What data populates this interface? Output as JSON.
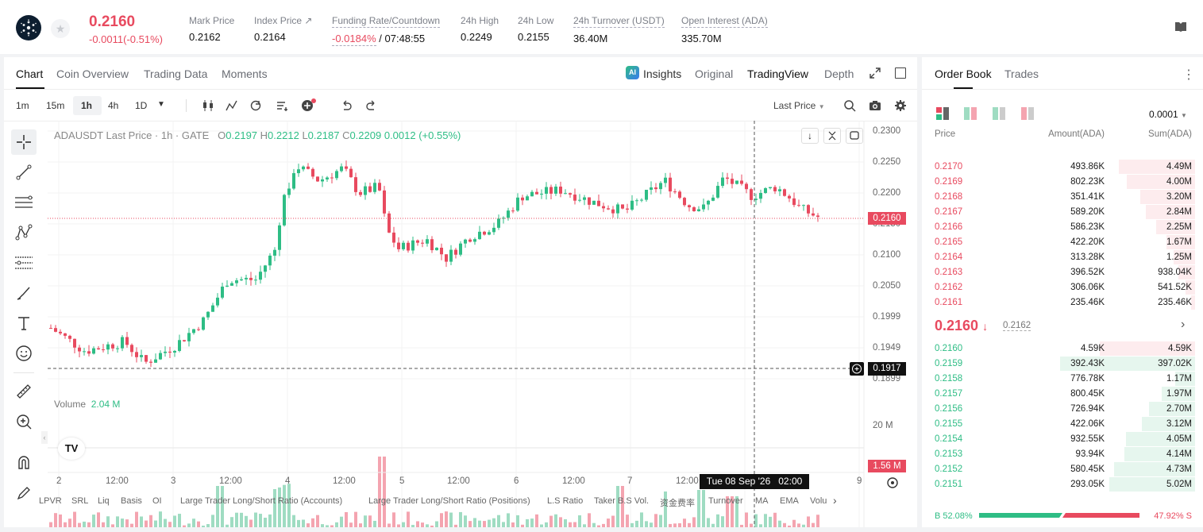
{
  "header": {
    "last_price": "0.2160",
    "change": "-0.0011(-0.51%)",
    "stats": [
      {
        "label": "Mark Price",
        "value": "0.2162"
      },
      {
        "label": "Index Price ↗",
        "value": "0.2164"
      },
      {
        "label": "Funding Rate/Countdown",
        "value_a": "-0.0184%",
        "value_b": " / 07:48:55"
      },
      {
        "label": "24h High",
        "value": "0.2249"
      },
      {
        "label": "24h Low",
        "value": "0.2155"
      },
      {
        "label": "24h Turnover (USDT)",
        "value": "36.40M"
      },
      {
        "label": "Open Interest (ADA)",
        "value": "335.70M"
      }
    ]
  },
  "chart_tabs": [
    "Chart",
    "Coin Overview",
    "Trading Data",
    "Moments"
  ],
  "view_tabs": [
    "Insights",
    "Original",
    "TradingView",
    "Depth"
  ],
  "ai_badge": "AI",
  "timeframes": [
    "1m",
    "15m",
    "1h",
    "4h",
    "1D"
  ],
  "price_source": "Last Price",
  "legend": {
    "symbol": "ADAUSDT Last Price · 1h · GATE",
    "o_lbl": "O",
    "o": "0.2197",
    "h_lbl": "H",
    "h": "0.2212",
    "l_lbl": "L",
    "l": "0.2187",
    "c_lbl": "C",
    "c": "0.2209",
    "chg": "0.0012 (+0.55%)"
  },
  "volume_legend": {
    "label": "Volume",
    "value": "2.04 M"
  },
  "price_axis": [
    "0.2300",
    "0.2250",
    "0.2200",
    "0.2150",
    "0.2100",
    "0.2050",
    "0.1999",
    "0.1949",
    "0.1899"
  ],
  "volume_axis": "20 M",
  "current_price_tag": "0.2160",
  "crosshair_price_tag": "0.1917",
  "volume_tag": "1.56 M",
  "time_axis": [
    "2",
    "12:00",
    "3",
    "12:00",
    "4",
    "12:00",
    "5",
    "12:00",
    "6",
    "12:00",
    "7",
    "12:00",
    "8",
    "9"
  ],
  "crosshair_time": "Tue 08 Sep '26   02:00",
  "tv_logo": "TV",
  "indicators": [
    "LPVR",
    "SRL",
    "Liq",
    "Basis",
    "OI",
    "Large Trader Long/Short Ratio (Accounts)",
    "Large Trader Long/Short Ratio (Positions)",
    "L.S Ratio",
    "Taker B.S Vol.",
    "资金费率",
    "Turnover",
    "MA",
    "EMA",
    "Volu"
  ],
  "orderbook": {
    "tabs": [
      "Order Book",
      "Trades"
    ],
    "precision": "0.0001",
    "headers": [
      "Price",
      "Amount(ADA)",
      "Sum(ADA)"
    ],
    "asks": [
      {
        "price": "0.2170",
        "amount": "493.86K",
        "sum": "4.49M",
        "depth": 0.89
      },
      {
        "price": "0.2169",
        "amount": "802.23K",
        "sum": "4.00M",
        "depth": 0.8
      },
      {
        "price": "0.2168",
        "amount": "351.41K",
        "sum": "3.20M",
        "depth": 0.64
      },
      {
        "price": "0.2167",
        "amount": "589.20K",
        "sum": "2.84M",
        "depth": 0.57
      },
      {
        "price": "0.2166",
        "amount": "586.23K",
        "sum": "2.25M",
        "depth": 0.45
      },
      {
        "price": "0.2165",
        "amount": "422.20K",
        "sum": "1.67M",
        "depth": 0.33
      },
      {
        "price": "0.2164",
        "amount": "313.28K",
        "sum": "1.25M",
        "depth": 0.25
      },
      {
        "price": "0.2163",
        "amount": "396.52K",
        "sum": "938.04K",
        "depth": 0.19
      },
      {
        "price": "0.2162",
        "amount": "306.06K",
        "sum": "541.52K",
        "depth": 0.11
      },
      {
        "price": "0.2161",
        "amount": "235.46K",
        "sum": "235.46K",
        "depth": 0.05
      }
    ],
    "mid_price": "0.2160",
    "mid_arrow": "↓",
    "mark_price": "0.2162",
    "bids": [
      {
        "price": "0.2160",
        "amount": "4.59K",
        "sum": "4.59K",
        "depth": 0.01
      },
      {
        "price": "0.2159",
        "amount": "392.43K",
        "sum": "397.02K",
        "depth": 0.08
      },
      {
        "price": "0.2158",
        "amount": "776.78K",
        "sum": "1.17M",
        "depth": 0.23
      },
      {
        "price": "0.2157",
        "amount": "800.45K",
        "sum": "1.97M",
        "depth": 0.39
      },
      {
        "price": "0.2156",
        "amount": "726.94K",
        "sum": "2.70M",
        "depth": 0.54
      },
      {
        "price": "0.2155",
        "amount": "422.06K",
        "sum": "3.12M",
        "depth": 0.62
      },
      {
        "price": "0.2154",
        "amount": "932.55K",
        "sum": "4.05M",
        "depth": 0.81
      },
      {
        "price": "0.2153",
        "amount": "93.94K",
        "sum": "4.14M",
        "depth": 0.82
      },
      {
        "price": "0.2152",
        "amount": "580.45K",
        "sum": "4.73M",
        "depth": 0.94
      },
      {
        "price": "0.2151",
        "amount": "293.05K",
        "sum": "5.02M",
        "depth": 1.0
      }
    ],
    "buy_ratio": "B 52.08%",
    "sell_ratio": "47.92% S",
    "buy_frac": 0.5208
  },
  "colors": {
    "up": "#2ebd85",
    "down": "#e84a5f",
    "up_light": "#9fdcc2",
    "down_light": "#f4a4b0"
  }
}
